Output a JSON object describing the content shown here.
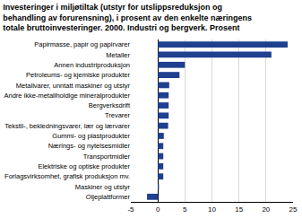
{
  "chart_data": {
    "type": "bar",
    "orientation": "horizontal",
    "title": "Investeringer i miljøtiltak (utstyr for utslippsreduksjon og behandling av forurensning), i prosent av den enkelte næringens totale bruttoinvesteringer. 2000. Industri og bergverk. Prosent",
    "categories": [
      "Papirmasse, papir og papirvarer",
      "Metaller",
      "Annen industriproduksjon",
      "Petroleums- og kjemiske produkter",
      "Metallvarer, unntatt maskiner og utstyr",
      "Andre ikke-metallholdige mineralprodukter",
      "Bergverksdrift",
      "Trevarer",
      "Tekstil-, bekledningsvarer, lær og lærvarer",
      "Gummi- og plastprodukter",
      "Nærings- og nytelsesmidler",
      "Transportmidler",
      "Elektriske og optiske produkter",
      "Forlagsvirksomhet, grafisk produksjon mv.",
      "Maskiner og utstyr",
      "Oljeplattformer"
    ],
    "values": [
      24,
      21,
      5,
      4,
      2.1,
      2,
      2,
      2,
      1.9,
      1.1,
      1,
      1,
      1,
      1,
      0.2,
      -2
    ],
    "color": "#1f3f8f",
    "xlim": [
      -5,
      25
    ],
    "xticks": [
      -5,
      0,
      5,
      10,
      15,
      20,
      25
    ],
    "grid": true
  }
}
